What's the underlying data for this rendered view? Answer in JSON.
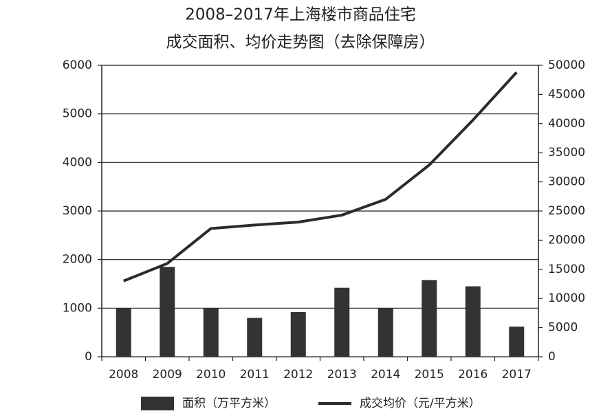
{
  "chart_data": {
    "type": "bar-line",
    "title": [
      "2008–2017年上海楼市商品住宅",
      "成交面积、均价走势图（去除保障房）"
    ],
    "categories": [
      "2008",
      "2009",
      "2010",
      "2011",
      "2012",
      "2013",
      "2014",
      "2015",
      "2016",
      "2017"
    ],
    "series": [
      {
        "name": "面积（万平方米）",
        "type": "bar",
        "color": "#333333",
        "values": [
          1000,
          1850,
          1000,
          800,
          920,
          1420,
          1000,
          1580,
          1450,
          620
        ]
      },
      {
        "name": "成交均价（元/平方米）",
        "type": "line",
        "axis": "y2",
        "color": "#2b2b2b",
        "values": [
          13000,
          16000,
          22000,
          22600,
          23100,
          24300,
          27000,
          32900,
          40600,
          48800
        ]
      }
    ],
    "ylim": [
      0,
      6000
    ],
    "yticks": [
      0,
      1000,
      2000,
      3000,
      4000,
      5000,
      6000
    ],
    "y2lim": [
      0,
      50000
    ],
    "y2ticks": [
      0,
      5000,
      10000,
      15000,
      20000,
      25000,
      30000,
      35000,
      40000,
      45000,
      50000
    ],
    "grid": true,
    "legend": "bottom"
  }
}
